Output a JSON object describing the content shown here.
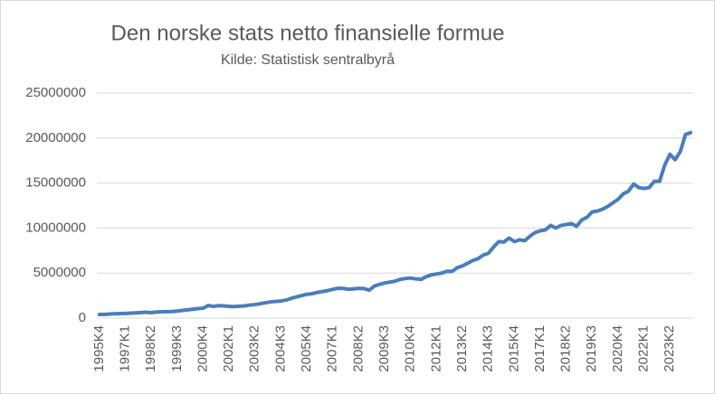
{
  "chart_data": {
    "type": "line",
    "title": "Den norske stats netto finansielle formue",
    "subtitle": "Kilde: Statistisk sentralbyrå",
    "categories": [
      "1995K4",
      null,
      null,
      null,
      null,
      "1997K1",
      null,
      null,
      null,
      null,
      "1998K2",
      null,
      null,
      null,
      null,
      "1999K3",
      null,
      null,
      null,
      null,
      "2000K4",
      null,
      null,
      null,
      null,
      "2002K1",
      null,
      null,
      null,
      null,
      "2003K2",
      null,
      null,
      null,
      null,
      "2004K3",
      null,
      null,
      null,
      null,
      "2005K4",
      null,
      null,
      null,
      null,
      "2007K1",
      null,
      null,
      null,
      null,
      "2008K2",
      null,
      null,
      null,
      null,
      "2009K3",
      null,
      null,
      null,
      null,
      "2010K4",
      null,
      null,
      null,
      null,
      "2012K1",
      null,
      null,
      null,
      null,
      "2013K2",
      null,
      null,
      null,
      null,
      "2014K3",
      null,
      null,
      null,
      null,
      "2015K4",
      null,
      null,
      null,
      null,
      "2017K1",
      null,
      null,
      null,
      null,
      "2018K2",
      null,
      null,
      null,
      null,
      "2019K3",
      null,
      null,
      null,
      null,
      "2020K4",
      null,
      null,
      null,
      null,
      "2022K1",
      null,
      null,
      null,
      null,
      "2023K2",
      null,
      null,
      null,
      null
    ],
    "values": [
      400000,
      420000,
      450000,
      480000,
      500000,
      520000,
      550000,
      580000,
      620000,
      650000,
      600000,
      680000,
      700000,
      720000,
      730000,
      780000,
      850000,
      920000,
      980000,
      1050000,
      1100000,
      1400000,
      1300000,
      1380000,
      1350000,
      1300000,
      1280000,
      1320000,
      1350000,
      1450000,
      1500000,
      1600000,
      1700000,
      1800000,
      1850000,
      1900000,
      2000000,
      2200000,
      2350000,
      2500000,
      2650000,
      2700000,
      2850000,
      2950000,
      3050000,
      3200000,
      3300000,
      3300000,
      3200000,
      3250000,
      3300000,
      3280000,
      3100000,
      3550000,
      3750000,
      3900000,
      4000000,
      4100000,
      4300000,
      4400000,
      4450000,
      4350000,
      4300000,
      4600000,
      4800000,
      4900000,
      5000000,
      5200000,
      5200000,
      5600000,
      5800000,
      6100000,
      6400000,
      6600000,
      7000000,
      7200000,
      7900000,
      8500000,
      8450000,
      8900000,
      8500000,
      8700000,
      8600000,
      9100000,
      9500000,
      9700000,
      9800000,
      10300000,
      10000000,
      10300000,
      10400000,
      10500000,
      10200000,
      10900000,
      11200000,
      11800000,
      11900000,
      12100000,
      12400000,
      12800000,
      13200000,
      13800000,
      14100000,
      14900000,
      14500000,
      14400000,
      14500000,
      15200000,
      15200000,
      17000000,
      18200000,
      17600000,
      18500000,
      20400000,
      20600000
    ],
    "color": "#4a7ebb",
    "ylim": [
      0,
      25000000
    ],
    "yticks": [
      0,
      5000000,
      10000000,
      15000000,
      20000000,
      25000000
    ],
    "grid": true
  }
}
